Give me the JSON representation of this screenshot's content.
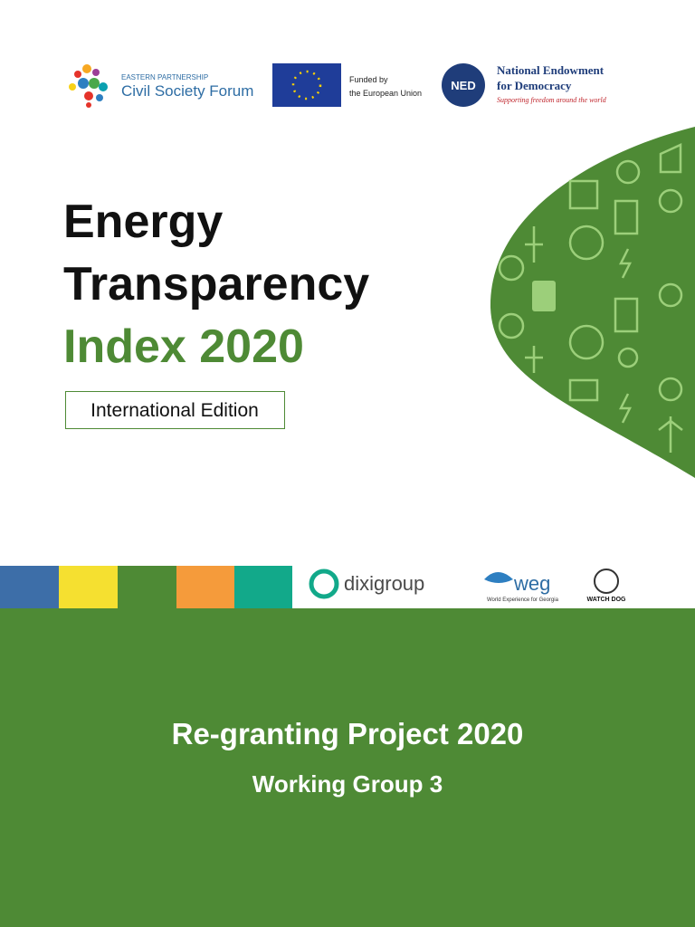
{
  "header": {
    "eap": {
      "small": "EASTERN PARTNERSHIP",
      "name": "Civil Society Forum"
    },
    "eu": {
      "line1": "Funded by",
      "line2": "the European Union"
    },
    "ned": {
      "badge": "NED",
      "line1": "National Endowment",
      "line2": "for Democracy",
      "tagline": "Supporting freedom around the world"
    }
  },
  "title": {
    "line1": "Energy",
    "line2": "Transparency",
    "line3": "Index 2020"
  },
  "edition": "International Edition",
  "partners": {
    "dixi": "dixigroup",
    "weg": "weg",
    "weg_sub": "World Experience for Georgia",
    "watchdog": "WATCH DOG"
  },
  "footer": {
    "project": "Re-granting Project 2020",
    "group": "Working Group 3"
  }
}
